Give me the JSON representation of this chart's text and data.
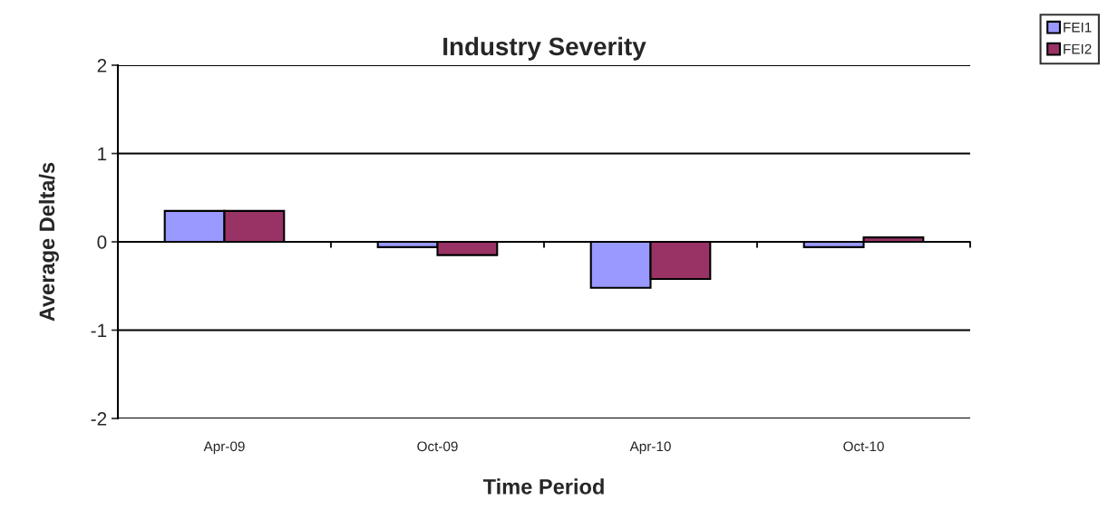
{
  "chart_data": {
    "type": "bar",
    "title": "Industry Severity",
    "xlabel": "Time Period",
    "ylabel": "Average Delta/s",
    "categories": [
      "Apr-09",
      "Oct-09",
      "Apr-10",
      "Oct-10"
    ],
    "series": [
      {
        "name": "FEI1",
        "color": "#9999ff",
        "values": [
          0.35,
          -0.06,
          -0.52,
          -0.06
        ]
      },
      {
        "name": "FEI2",
        "color": "#993366",
        "values": [
          0.35,
          -0.15,
          -0.42,
          0.05
        ]
      }
    ],
    "ylim": [
      -2,
      2
    ],
    "yticks": [
      -2,
      -1,
      0,
      1,
      2
    ],
    "grid": "y",
    "legend": "top right"
  }
}
